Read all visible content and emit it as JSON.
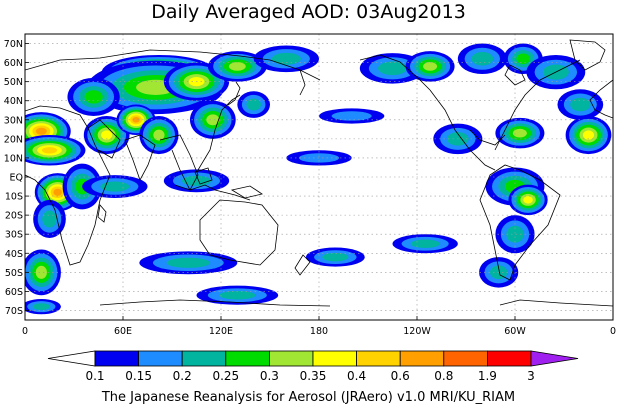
{
  "title": "Daily Averaged AOD: 03Aug2013",
  "credit": "The Japanese Reanalysis for Aerosol (JRAero) v1.0 MRI/KU_RIAM",
  "map": {
    "projection": "equirectangular",
    "lon_range": [
      0,
      360
    ],
    "lat_range": [
      -75,
      75
    ],
    "lat_ticks": [
      {
        "lat": 70,
        "label": "70N"
      },
      {
        "lat": 60,
        "label": "60N"
      },
      {
        "lat": 50,
        "label": "50N"
      },
      {
        "lat": 40,
        "label": "40N"
      },
      {
        "lat": 30,
        "label": "30N"
      },
      {
        "lat": 20,
        "label": "20N"
      },
      {
        "lat": 10,
        "label": "10N"
      },
      {
        "lat": 0,
        "label": "EQ"
      },
      {
        "lat": -10,
        "label": "10S"
      },
      {
        "lat": -20,
        "label": "20S"
      },
      {
        "lat": -30,
        "label": "30S"
      },
      {
        "lat": -40,
        "label": "40S"
      },
      {
        "lat": -50,
        "label": "50S"
      },
      {
        "lat": -60,
        "label": "60S"
      },
      {
        "lat": -70,
        "label": "70S"
      }
    ],
    "lon_ticks": [
      {
        "lon": 0,
        "label": "0"
      },
      {
        "lon": 60,
        "label": "60E"
      },
      {
        "lon": 120,
        "label": "120E"
      },
      {
        "lon": 180,
        "label": "180"
      },
      {
        "lon": 240,
        "label": "120W"
      },
      {
        "lon": 300,
        "label": "60W"
      },
      {
        "lon": 360,
        "label": "0"
      }
    ],
    "grid": true
  },
  "colorbar": {
    "labels": [
      "0.1",
      "0.15",
      "0.2",
      "0.25",
      "0.3",
      "0.35",
      "0.4",
      "0.6",
      "0.8",
      "1.9",
      "3"
    ],
    "colors": [
      "#ffffff",
      "#0000f0",
      "#1e8cff",
      "#00b4a0",
      "#00dc00",
      "#a0e632",
      "#ffff00",
      "#ffd200",
      "#ffa000",
      "#ff6400",
      "#ff0000",
      "#a020f0"
    ],
    "extend": "both"
  },
  "fields": [
    {
      "lon": 82,
      "lat": 55,
      "rx": 35,
      "ry": 9,
      "level": 8
    },
    {
      "lon": 80,
      "lat": 47,
      "rx": 42,
      "ry": 14,
      "level": 5
    },
    {
      "lon": 105,
      "lat": 50,
      "rx": 20,
      "ry": 10,
      "level": 6
    },
    {
      "lon": 130,
      "lat": 58,
      "rx": 18,
      "ry": 8,
      "level": 5
    },
    {
      "lon": 160,
      "lat": 62,
      "rx": 20,
      "ry": 7,
      "level": 3
    },
    {
      "lon": 42,
      "lat": 42,
      "rx": 16,
      "ry": 10,
      "level": 4
    },
    {
      "lon": 10,
      "lat": 24,
      "rx": 18,
      "ry": 10,
      "level": 8
    },
    {
      "lon": 15,
      "lat": 14,
      "rx": 22,
      "ry": 8,
      "level": 7
    },
    {
      "lon": 50,
      "lat": 22,
      "rx": 14,
      "ry": 10,
      "level": 6
    },
    {
      "lon": 68,
      "lat": 30,
      "rx": 12,
      "ry": 8,
      "level": 8
    },
    {
      "lon": 82,
      "lat": 22,
      "rx": 12,
      "ry": 10,
      "level": 5
    },
    {
      "lon": 115,
      "lat": 30,
      "rx": 14,
      "ry": 10,
      "level": 5
    },
    {
      "lon": 140,
      "lat": 38,
      "rx": 10,
      "ry": 7,
      "level": 3
    },
    {
      "lon": 20,
      "lat": -8,
      "rx": 14,
      "ry": 10,
      "level": 8
    },
    {
      "lon": 35,
      "lat": -5,
      "rx": 12,
      "ry": 12,
      "level": 4
    },
    {
      "lon": 55,
      "lat": -5,
      "rx": 20,
      "ry": 6,
      "level": 3
    },
    {
      "lon": 15,
      "lat": -22,
      "rx": 10,
      "ry": 10,
      "level": 3
    },
    {
      "lon": 105,
      "lat": -2,
      "rx": 20,
      "ry": 6,
      "level": 3
    },
    {
      "lon": 100,
      "lat": -45,
      "rx": 30,
      "ry": 6,
      "level": 3
    },
    {
      "lon": 130,
      "lat": -62,
      "rx": 25,
      "ry": 5,
      "level": 3
    },
    {
      "lon": 10,
      "lat": -50,
      "rx": 12,
      "ry": 12,
      "level": 5
    },
    {
      "lon": 10,
      "lat": -68,
      "rx": 12,
      "ry": 4,
      "level": 3
    },
    {
      "lon": 225,
      "lat": 57,
      "rx": 20,
      "ry": 8,
      "level": 3
    },
    {
      "lon": 248,
      "lat": 58,
      "rx": 15,
      "ry": 8,
      "level": 5
    },
    {
      "lon": 280,
      "lat": 62,
      "rx": 15,
      "ry": 8,
      "level": 3
    },
    {
      "lon": 305,
      "lat": 62,
      "rx": 12,
      "ry": 8,
      "level": 4
    },
    {
      "lon": 325,
      "lat": 55,
      "rx": 18,
      "ry": 9,
      "level": 3
    },
    {
      "lon": 340,
      "lat": 38,
      "rx": 14,
      "ry": 8,
      "level": 3
    },
    {
      "lon": 345,
      "lat": 22,
      "rx": 14,
      "ry": 10,
      "level": 6
    },
    {
      "lon": 303,
      "lat": 23,
      "rx": 15,
      "ry": 8,
      "level": 5
    },
    {
      "lon": 265,
      "lat": 20,
      "rx": 15,
      "ry": 8,
      "level": 3
    },
    {
      "lon": 300,
      "lat": -5,
      "rx": 18,
      "ry": 10,
      "level": 4
    },
    {
      "lon": 308,
      "lat": -12,
      "rx": 12,
      "ry": 8,
      "level": 6
    },
    {
      "lon": 300,
      "lat": -30,
      "rx": 12,
      "ry": 10,
      "level": 3
    },
    {
      "lon": 290,
      "lat": -50,
      "rx": 12,
      "ry": 8,
      "level": 3
    },
    {
      "lon": 245,
      "lat": -35,
      "rx": 20,
      "ry": 5,
      "level": 3
    },
    {
      "lon": 190,
      "lat": -42,
      "rx": 18,
      "ry": 5,
      "level": 3
    },
    {
      "lon": 180,
      "lat": 10,
      "rx": 20,
      "ry": 4,
      "level": 2
    },
    {
      "lon": 200,
      "lat": 32,
      "rx": 20,
      "ry": 4,
      "level": 2
    }
  ]
}
